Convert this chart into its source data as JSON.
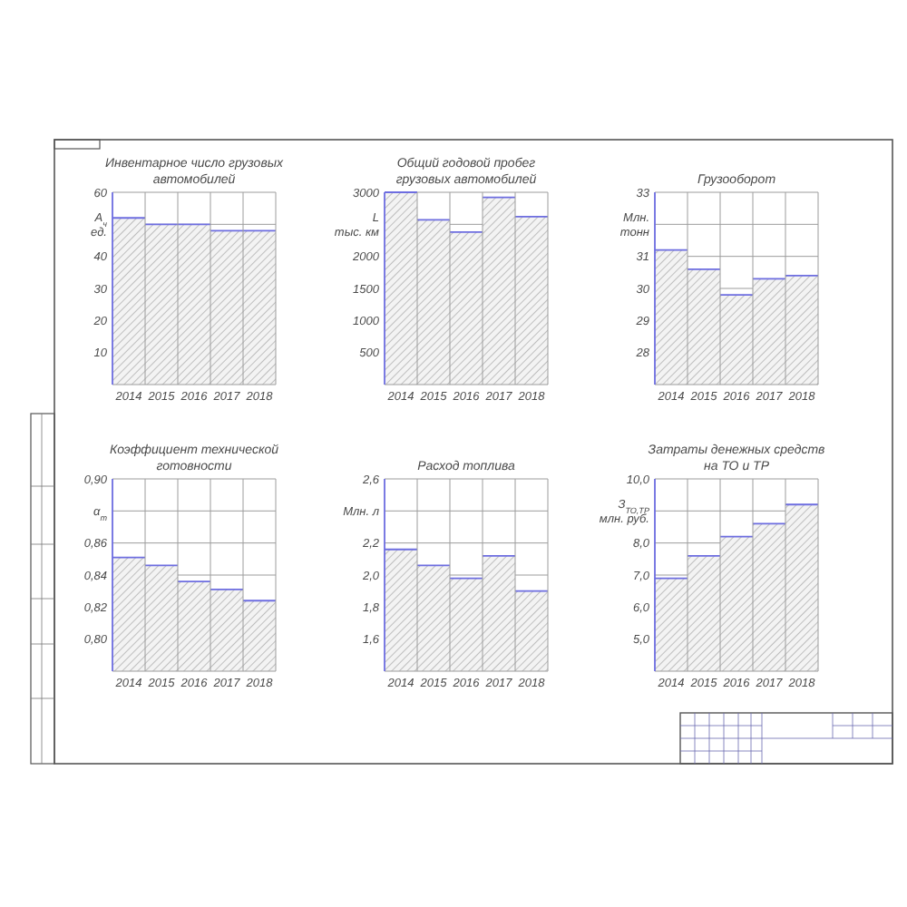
{
  "chart_data": [
    {
      "type": "bar",
      "title": "Инвентарное число грузовых автомобилей",
      "ylabel": "A$_{ч}$\nед.",
      "categories": [
        "2014",
        "2015",
        "2016",
        "2017",
        "2018"
      ],
      "values": [
        52,
        50,
        50,
        48,
        48
      ],
      "color": "#6d6de0",
      "ylim": [
        0,
        60
      ],
      "yticks": [
        10,
        20,
        30,
        40,
        {
          "value": 50,
          "label": null
        },
        60
      ],
      "grid": true
    },
    {
      "type": "bar",
      "title": "Общий годовой пробег грузовых автомобилей",
      "ylabel": "L\nтыс. км",
      "categories": [
        "2014",
        "2015",
        "2016",
        "2017",
        "2018"
      ],
      "values": [
        3000,
        2570,
        2380,
        2920,
        2620
      ],
      "color": "#6d6de0",
      "ylim": [
        0,
        3000
      ],
      "yticks": [
        500,
        1000,
        1500,
        2000,
        {
          "value": 2500,
          "label": null
        },
        3000
      ],
      "grid": true
    },
    {
      "type": "bar",
      "title": "Грузооборот",
      "ylabel": "Млн.\nтонн",
      "categories": [
        "2014",
        "2015",
        "2016",
        "2017",
        "2018"
      ],
      "values": [
        31.2,
        30.6,
        29.8,
        30.3,
        30.4
      ],
      "color": "#6d6de0",
      "ylim": [
        27,
        33
      ],
      "yticks": [
        28,
        29,
        30,
        31,
        {
          "value": 32,
          "label": null
        },
        33
      ],
      "grid": true
    },
    {
      "type": "bar",
      "title": "Коэффициент технической готовности",
      "ylabel": "α$_{т}$",
      "categories": [
        "2014",
        "2015",
        "2016",
        "2017",
        "2018"
      ],
      "values": [
        0.851,
        0.846,
        0.836,
        0.831,
        0.824
      ],
      "color": "#6d6de0",
      "ylim": [
        0.78,
        0.9
      ],
      "yticks": [
        {
          "value": 0.8,
          "label": "0,80"
        },
        {
          "value": 0.82,
          "label": "0,82"
        },
        {
          "value": 0.84,
          "label": "0,84"
        },
        {
          "value": 0.86,
          "label": "0,86"
        },
        {
          "value": 0.88,
          "label": null
        },
        {
          "value": 0.9,
          "label": "0,90"
        }
      ],
      "grid": true
    },
    {
      "type": "bar",
      "title": "Расход топлива",
      "ylabel": "Млн. л",
      "categories": [
        "2014",
        "2015",
        "2016",
        "2017",
        "2018"
      ],
      "values": [
        2.16,
        2.06,
        1.98,
        2.12,
        1.9
      ],
      "color": "#6d6de0",
      "ylim": [
        1.4,
        2.6
      ],
      "yticks": [
        {
          "value": 1.6,
          "label": "1,6"
        },
        {
          "value": 1.8,
          "label": "1,8"
        },
        {
          "value": 2.0,
          "label": "2,0"
        },
        {
          "value": 2.2,
          "label": "2,2"
        },
        {
          "value": 2.4,
          "label": null
        },
        {
          "value": 2.6,
          "label": "2,6"
        }
      ],
      "grid": true
    },
    {
      "type": "bar",
      "title": "Затраты денежных средств на ТО и ТР",
      "ylabel": "З$_{ТО,ТР}$\nмлн. руб.",
      "categories": [
        "2014",
        "2015",
        "2016",
        "2017",
        "2018"
      ],
      "values": [
        6.9,
        7.6,
        8.2,
        8.6,
        9.2
      ],
      "color": "#6d6de0",
      "ylim": [
        4,
        10
      ],
      "yticks": [
        {
          "value": 5,
          "label": "5,0"
        },
        {
          "value": 6,
          "label": "6,0"
        },
        {
          "value": 7,
          "label": "7,0"
        },
        {
          "value": 8,
          "label": "8,0"
        },
        {
          "value": 9,
          "label": null
        },
        {
          "value": 10,
          "label": "10,0"
        }
      ],
      "grid": true
    }
  ]
}
